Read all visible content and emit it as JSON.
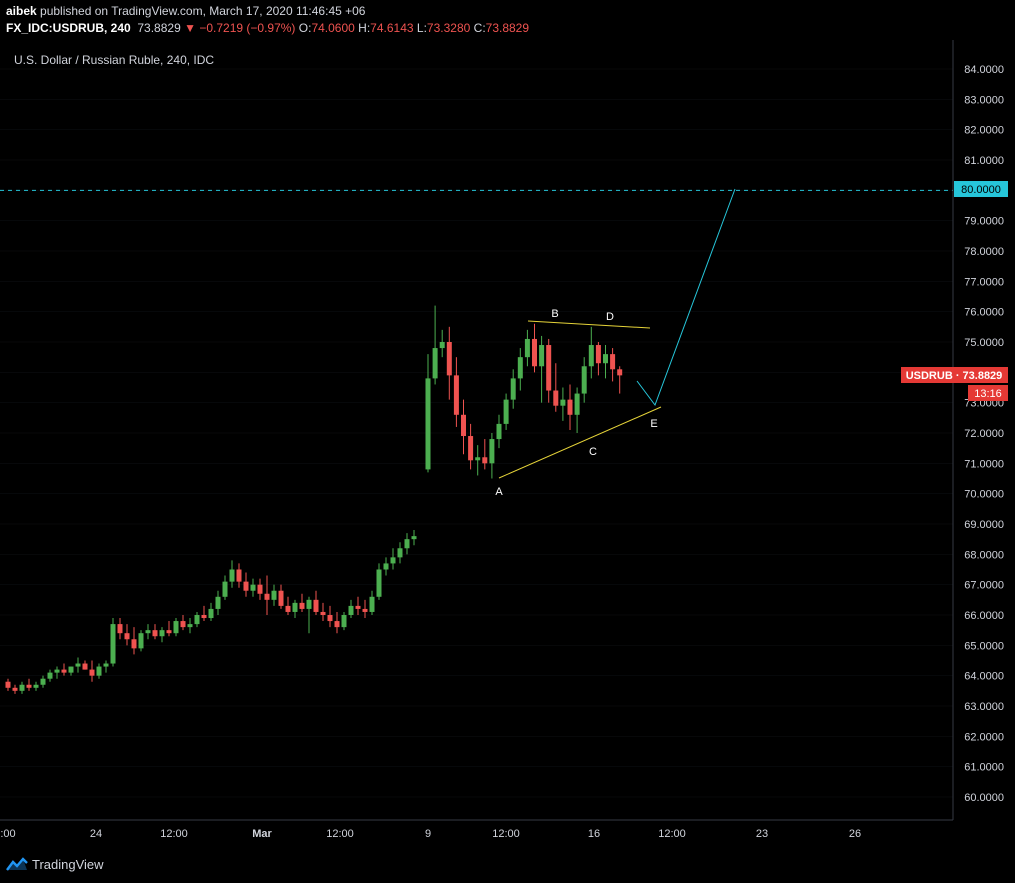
{
  "header": {
    "author": "aibek",
    "published_text": "published on TradingView.com, March 17, 2020 11:46:45 +06",
    "symbol": "FX_IDC:USDRUB, 240",
    "last": "73.8829",
    "change": "−0.7219 (−0.97%)",
    "open_label": "O:",
    "open": "74.0600",
    "high_label": "H:",
    "high": "74.6143",
    "low_label": "L:",
    "low": "73.3280",
    "close_label": "C:",
    "close": "73.8829"
  },
  "chart_title": "U.S. Dollar / Russian Ruble, 240, IDC",
  "price_tag": {
    "label": "USDRUB · 73.8829",
    "countdown": "13:16"
  },
  "level_tag": "80.0000",
  "footer": {
    "brand": "TradingView"
  },
  "colors": {
    "up": "#4caf50",
    "down": "#ef5350",
    "accent": "#26c6da",
    "pattern": "#e6d439",
    "grid": "#2a2e39"
  },
  "chart_data": {
    "type": "candlestick",
    "y_ticks": [
      "84.0000",
      "83.0000",
      "82.0000",
      "81.0000",
      "80.0000",
      "79.0000",
      "78.0000",
      "77.0000",
      "76.0000",
      "75.0000",
      "74.0000",
      "73.0000",
      "72.0000",
      "71.0000",
      "70.0000",
      "69.0000",
      "68.0000",
      "67.0000",
      "66.0000",
      "65.0000",
      "64.0000",
      "63.0000",
      "62.0000",
      "61.0000",
      "60.0000"
    ],
    "ylim": [
      59.3,
      84.7
    ],
    "x_ticks": [
      ":00",
      "24",
      "12:00",
      "Mar",
      "12:00",
      "9",
      "12:00",
      "16",
      "12:00",
      "23",
      "26"
    ],
    "candles": [
      [
        63.8,
        63.9,
        63.5,
        63.6
      ],
      [
        63.6,
        63.7,
        63.4,
        63.5
      ],
      [
        63.5,
        63.8,
        63.4,
        63.7
      ],
      [
        63.7,
        63.9,
        63.5,
        63.6
      ],
      [
        63.6,
        63.8,
        63.5,
        63.7
      ],
      [
        63.7,
        64.0,
        63.6,
        63.9
      ],
      [
        63.9,
        64.2,
        63.8,
        64.1
      ],
      [
        64.1,
        64.3,
        63.9,
        64.2
      ],
      [
        64.2,
        64.4,
        64.0,
        64.1
      ],
      [
        64.1,
        64.3,
        64.0,
        64.3
      ],
      [
        64.3,
        64.6,
        64.1,
        64.4
      ],
      [
        64.4,
        64.5,
        64.2,
        64.2
      ],
      [
        64.2,
        64.5,
        63.8,
        64.0
      ],
      [
        64.0,
        64.4,
        63.9,
        64.3
      ],
      [
        64.3,
        64.5,
        64.1,
        64.4
      ],
      [
        64.4,
        65.9,
        64.3,
        65.7
      ],
      [
        65.7,
        65.9,
        65.2,
        65.4
      ],
      [
        65.4,
        65.7,
        65.0,
        65.2
      ],
      [
        65.2,
        65.6,
        64.7,
        64.9
      ],
      [
        64.9,
        65.5,
        64.8,
        65.4
      ],
      [
        65.4,
        65.7,
        65.2,
        65.5
      ],
      [
        65.5,
        65.7,
        65.2,
        65.3
      ],
      [
        65.3,
        65.6,
        65.1,
        65.5
      ],
      [
        65.5,
        65.8,
        65.3,
        65.4
      ],
      [
        65.4,
        65.9,
        65.3,
        65.8
      ],
      [
        65.8,
        66.0,
        65.5,
        65.6
      ],
      [
        65.6,
        65.9,
        65.4,
        65.7
      ],
      [
        65.7,
        66.1,
        65.6,
        66.0
      ],
      [
        66.0,
        66.3,
        65.8,
        65.9
      ],
      [
        65.9,
        66.4,
        65.8,
        66.2
      ],
      [
        66.2,
        66.8,
        66.0,
        66.6
      ],
      [
        66.6,
        67.3,
        66.5,
        67.1
      ],
      [
        67.1,
        67.8,
        66.9,
        67.5
      ],
      [
        67.5,
        67.7,
        66.9,
        67.1
      ],
      [
        67.1,
        67.4,
        66.6,
        66.8
      ],
      [
        66.8,
        67.2,
        66.6,
        67.0
      ],
      [
        67.0,
        67.2,
        66.5,
        66.7
      ],
      [
        66.7,
        67.3,
        66.0,
        66.5
      ],
      [
        66.5,
        67.0,
        66.3,
        66.8
      ],
      [
        66.8,
        67.0,
        66.2,
        66.3
      ],
      [
        66.3,
        66.6,
        66.0,
        66.1
      ],
      [
        66.1,
        66.5,
        65.9,
        66.4
      ],
      [
        66.4,
        66.7,
        66.1,
        66.2
      ],
      [
        66.2,
        66.6,
        65.4,
        66.5
      ],
      [
        66.5,
        66.8,
        66.0,
        66.1
      ],
      [
        66.1,
        66.4,
        65.8,
        66.0
      ],
      [
        66.0,
        66.3,
        65.6,
        65.8
      ],
      [
        65.8,
        66.1,
        65.4,
        65.6
      ],
      [
        65.6,
        66.1,
        65.5,
        66.0
      ],
      [
        66.0,
        66.5,
        65.9,
        66.3
      ],
      [
        66.3,
        66.6,
        66.0,
        66.2
      ],
      [
        66.2,
        66.5,
        65.9,
        66.1
      ],
      [
        66.1,
        66.8,
        66.0,
        66.6
      ],
      [
        66.6,
        67.7,
        66.5,
        67.5
      ],
      [
        67.5,
        67.9,
        67.3,
        67.7
      ],
      [
        67.7,
        68.2,
        67.5,
        67.9
      ],
      [
        67.9,
        68.4,
        67.7,
        68.2
      ],
      [
        68.2,
        68.7,
        68.0,
        68.5
      ],
      [
        68.5,
        68.8,
        68.3,
        68.6
      ],
      [
        70.8,
        74.6,
        70.7,
        73.8
      ],
      [
        73.8,
        76.2,
        73.6,
        74.8
      ],
      [
        74.8,
        75.4,
        74.5,
        75.0
      ],
      [
        75.0,
        75.5,
        73.1,
        73.9
      ],
      [
        73.9,
        74.5,
        72.2,
        72.6
      ],
      [
        72.6,
        73.1,
        71.3,
        71.9
      ],
      [
        71.9,
        72.3,
        70.8,
        71.1
      ],
      [
        71.1,
        71.6,
        70.6,
        71.2
      ],
      [
        71.2,
        71.8,
        70.8,
        71.0
      ],
      [
        71.0,
        72.0,
        70.5,
        71.8
      ],
      [
        71.8,
        72.6,
        71.5,
        72.3
      ],
      [
        72.3,
        73.3,
        72.1,
        73.1
      ],
      [
        73.1,
        74.1,
        72.8,
        73.8
      ],
      [
        73.8,
        74.8,
        73.4,
        74.5
      ],
      [
        74.5,
        75.4,
        74.2,
        75.1
      ],
      [
        75.1,
        75.6,
        74.0,
        74.2
      ],
      [
        74.2,
        75.2,
        73.0,
        74.9
      ],
      [
        74.9,
        75.1,
        73.0,
        73.4
      ],
      [
        73.4,
        74.3,
        72.7,
        72.9
      ],
      [
        72.9,
        73.5,
        72.4,
        73.1
      ],
      [
        73.1,
        73.6,
        72.1,
        72.6
      ],
      [
        72.6,
        73.5,
        72.0,
        73.3
      ],
      [
        73.3,
        74.5,
        73.0,
        74.2
      ],
      [
        74.2,
        75.5,
        73.8,
        74.9
      ],
      [
        74.9,
        75.0,
        73.9,
        74.3
      ],
      [
        74.3,
        74.9,
        73.8,
        74.6
      ],
      [
        74.6,
        74.8,
        73.7,
        74.1
      ],
      [
        74.1,
        74.2,
        73.3,
        73.9
      ]
    ],
    "annotations": {
      "wave_labels": [
        "A",
        "B",
        "C",
        "D",
        "E"
      ],
      "target_level": 80.0
    }
  }
}
